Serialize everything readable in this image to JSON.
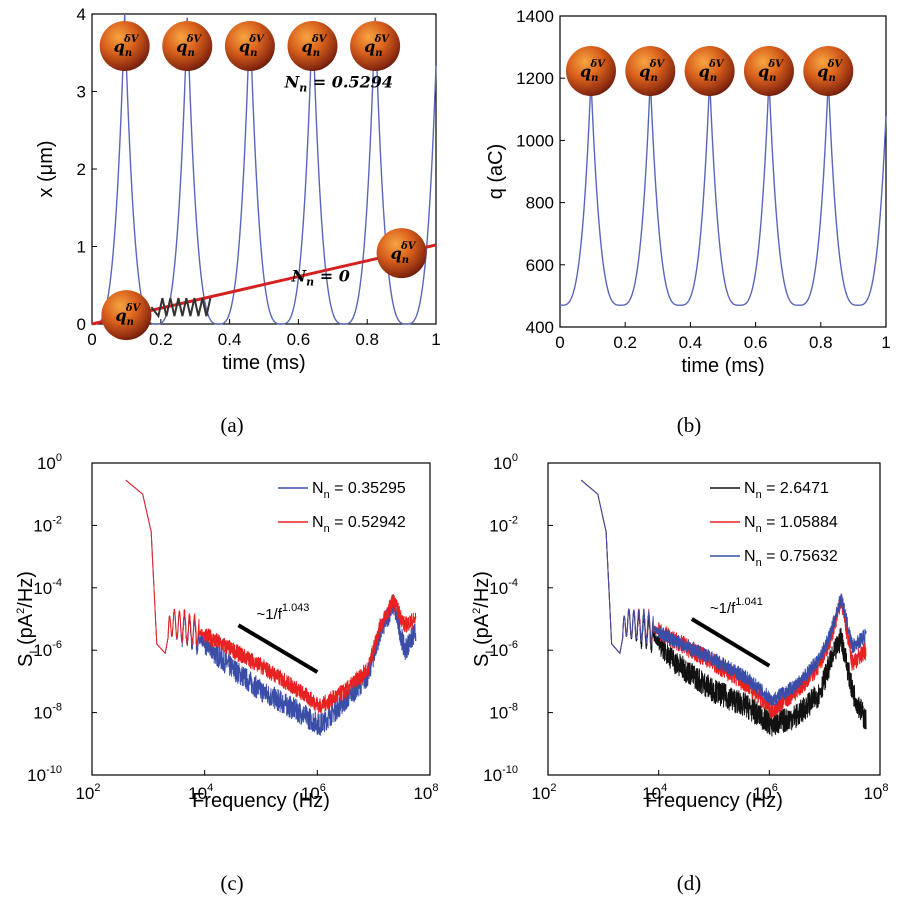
{
  "chart_data": [
    {
      "id": "a",
      "type": "line",
      "panel_label": "(a)",
      "xlabel": "time (ms)",
      "ylabel": "x (μm)",
      "xlim": [
        0,
        1
      ],
      "ylim": [
        0,
        4
      ],
      "xticks": [
        "0",
        "0.2",
        "0.4",
        "0.6",
        "0.8",
        "1"
      ],
      "yticks": [
        "0",
        "1",
        "2",
        "3",
        "4"
      ],
      "series": [
        {
          "period": 0.182,
          "first_peak": 0.095,
          "min": 0.0,
          "max": 4.0,
          "color": "#5a66b8"
        },
        {
          "x": [
            0,
            1
          ],
          "y": [
            0,
            1.02
          ],
          "color": "#d42020"
        }
      ],
      "annotations": [
        {
          "text": "N",
          "sub": "n",
          "rest": " = 0.5294",
          "x": 0.56,
          "y": 3.05
        },
        {
          "text": "N",
          "sub": "n",
          "rest": " = 0",
          "x": 0.58,
          "y": 0.55
        }
      ],
      "particle_label": {
        "base": "q",
        "sub": "n",
        "sup": "δV"
      },
      "particles_top_x": [
        0.095,
        0.277,
        0.459,
        0.641,
        0.823
      ],
      "particle_bottom": [
        0.1,
        0.05
      ],
      "particle_right": [
        0.9,
        0.85
      ]
    },
    {
      "id": "b",
      "type": "line",
      "panel_label": "(b)",
      "xlabel": "time (ms)",
      "ylabel": "q (aC)",
      "xlim": [
        0,
        1
      ],
      "ylim": [
        400,
        1400
      ],
      "xticks": [
        "0",
        "0.2",
        "0.4",
        "0.6",
        "0.8",
        "1"
      ],
      "yticks": [
        "400",
        "600",
        "800",
        "1000",
        "1200",
        "1400"
      ],
      "series": [
        {
          "period": 0.182,
          "first_peak": 0.095,
          "min": 470,
          "max": 1200,
          "color": "#5a66b8"
        }
      ],
      "particle_label": {
        "base": "q",
        "sub": "n",
        "sup": "δV"
      },
      "particles_top_x": [
        0.095,
        0.277,
        0.459,
        0.641,
        0.823
      ]
    },
    {
      "id": "c",
      "type": "line",
      "panel_label": "(c)",
      "xlabel": "Frequency (Hz)",
      "ylabel": "S",
      "ylabel_sub": "I",
      "ylabel_rest": " (pA",
      "ylabel_sup": "2",
      "ylabel_end": "/Hz)",
      "xscale": "log",
      "yscale": "log",
      "xlim_exp": [
        2,
        8
      ],
      "ylim_exp": [
        -10,
        0
      ],
      "xticks": [
        {
          "base": "10",
          "exp": "2"
        },
        {
          "base": "10",
          "exp": "4"
        },
        {
          "base": "10",
          "exp": "6"
        },
        {
          "base": "10",
          "exp": "8"
        }
      ],
      "yticks": [
        {
          "base": "10",
          "exp": "-10"
        },
        {
          "base": "10",
          "exp": "-8"
        },
        {
          "base": "10",
          "exp": "-6"
        },
        {
          "base": "10",
          "exp": "-4"
        },
        {
          "base": "10",
          "exp": "-2"
        },
        {
          "base": "10",
          "exp": "0"
        }
      ],
      "slope_label": {
        "base": "~1/f",
        "exp": "1.043"
      },
      "slope_line_exp": [
        [
          4.6,
          -5.2
        ],
        [
          6.0,
          -6.7
        ]
      ],
      "series": [
        {
          "name": "N",
          "name_sub": "n",
          "name_rest": " = 0.35295",
          "color": "#3a4ea8",
          "noise": 0.55,
          "trend": [
            [
              2.6,
              -0.55
            ],
            [
              2.9,
              -1.0
            ],
            [
              3.05,
              -2.2
            ],
            [
              3.15,
              -5.8
            ],
            [
              3.3,
              -6.1
            ],
            [
              3.4,
              -5.1
            ],
            [
              3.9,
              -5.6
            ],
            [
              4.3,
              -6.3
            ],
            [
              5.0,
              -7.3
            ],
            [
              5.6,
              -7.9
            ],
            [
              6.05,
              -8.4
            ],
            [
              6.5,
              -7.6
            ],
            [
              6.9,
              -6.8
            ],
            [
              7.1,
              -5.5
            ],
            [
              7.35,
              -4.5
            ],
            [
              7.55,
              -6.0
            ],
            [
              7.75,
              -5.4
            ]
          ]
        },
        {
          "name": "N",
          "name_sub": "n",
          "name_rest": " = 0.52942",
          "color": "#e82222",
          "noise": 0.4,
          "trend": [
            [
              2.6,
              -0.55
            ],
            [
              2.9,
              -1.0
            ],
            [
              3.05,
              -2.2
            ],
            [
              3.15,
              -5.8
            ],
            [
              3.3,
              -6.1
            ],
            [
              3.4,
              -5.1
            ],
            [
              3.9,
              -5.4
            ],
            [
              4.3,
              -5.8
            ],
            [
              5.0,
              -6.5
            ],
            [
              5.6,
              -7.2
            ],
            [
              6.05,
              -7.8
            ],
            [
              6.5,
              -7.3
            ],
            [
              6.9,
              -6.6
            ],
            [
              7.1,
              -5.3
            ],
            [
              7.35,
              -4.4
            ],
            [
              7.55,
              -5.2
            ],
            [
              7.75,
              -5.0
            ]
          ]
        }
      ]
    },
    {
      "id": "d",
      "type": "line",
      "panel_label": "(d)",
      "xlabel": "Frequency (Hz)",
      "ylabel": "S",
      "ylabel_sub": "I",
      "ylabel_rest": " (pA",
      "ylabel_sup": "2",
      "ylabel_end": "/Hz)",
      "xscale": "log",
      "yscale": "log",
      "xlim_exp": [
        2,
        8
      ],
      "ylim_exp": [
        -10,
        0
      ],
      "xticks": [
        {
          "base": "10",
          "exp": "2"
        },
        {
          "base": "10",
          "exp": "4"
        },
        {
          "base": "10",
          "exp": "6"
        },
        {
          "base": "10",
          "exp": "8"
        }
      ],
      "yticks": [
        {
          "base": "10",
          "exp": "-10"
        },
        {
          "base": "10",
          "exp": "-8"
        },
        {
          "base": "10",
          "exp": "-6"
        },
        {
          "base": "10",
          "exp": "-4"
        },
        {
          "base": "10",
          "exp": "-2"
        },
        {
          "base": "10",
          "exp": "0"
        }
      ],
      "slope_label": {
        "base": "~1/f",
        "exp": "1.041"
      },
      "slope_line_exp": [
        [
          4.6,
          -5.0
        ],
        [
          6.0,
          -6.5
        ]
      ],
      "series": [
        {
          "name": "N",
          "name_sub": "n",
          "name_rest": " = 2.6471",
          "color": "#111111",
          "noise": 0.6,
          "trend": [
            [
              2.6,
              -0.55
            ],
            [
              2.9,
              -1.0
            ],
            [
              3.05,
              -2.2
            ],
            [
              3.15,
              -5.8
            ],
            [
              3.3,
              -6.1
            ],
            [
              3.4,
              -5.1
            ],
            [
              3.9,
              -5.5
            ],
            [
              4.3,
              -6.4
            ],
            [
              5.0,
              -7.3
            ],
            [
              5.6,
              -7.8
            ],
            [
              6.05,
              -8.4
            ],
            [
              6.5,
              -8.1
            ],
            [
              6.9,
              -7.4
            ],
            [
              7.1,
              -6.4
            ],
            [
              7.3,
              -5.6
            ],
            [
              7.5,
              -7.3
            ],
            [
              7.75,
              -8.3
            ]
          ]
        },
        {
          "name": "N",
          "name_sub": "n",
          "name_rest": " = 1.05884",
          "color": "#e82222",
          "noise": 0.45,
          "trend": [
            [
              2.6,
              -0.55
            ],
            [
              2.9,
              -1.0
            ],
            [
              3.05,
              -2.2
            ],
            [
              3.15,
              -5.8
            ],
            [
              3.3,
              -6.1
            ],
            [
              3.4,
              -5.1
            ],
            [
              3.9,
              -5.3
            ],
            [
              4.3,
              -5.7
            ],
            [
              5.0,
              -6.4
            ],
            [
              5.6,
              -7.1
            ],
            [
              6.05,
              -7.9
            ],
            [
              6.5,
              -7.3
            ],
            [
              6.9,
              -6.5
            ],
            [
              7.1,
              -5.7
            ],
            [
              7.3,
              -4.4
            ],
            [
              7.5,
              -6.4
            ],
            [
              7.75,
              -6.0
            ]
          ]
        },
        {
          "name": "N",
          "name_sub": "n",
          "name_rest": " = 0.75632",
          "color": "#3a4ea8",
          "noise": 0.35,
          "trend": [
            [
              2.6,
              -0.55
            ],
            [
              2.9,
              -1.0
            ],
            [
              3.05,
              -2.2
            ],
            [
              3.15,
              -5.8
            ],
            [
              3.3,
              -6.1
            ],
            [
              3.4,
              -5.1
            ],
            [
              3.9,
              -5.3
            ],
            [
              4.3,
              -5.7
            ],
            [
              5.0,
              -6.3
            ],
            [
              5.6,
              -6.9
            ],
            [
              6.05,
              -7.6
            ],
            [
              6.5,
              -7.1
            ],
            [
              6.9,
              -6.3
            ],
            [
              7.1,
              -5.5
            ],
            [
              7.3,
              -4.3
            ],
            [
              7.5,
              -5.9
            ],
            [
              7.75,
              -5.5
            ]
          ]
        }
      ]
    }
  ]
}
